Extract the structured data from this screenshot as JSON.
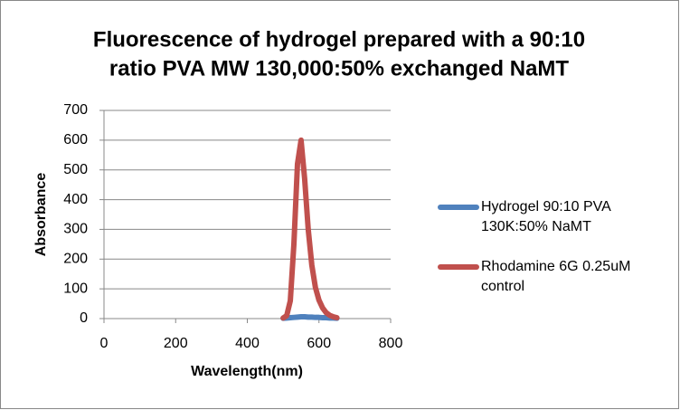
{
  "chart_data": {
    "type": "line",
    "title": [
      "Fluorescence of hydrogel prepared with a 90:10",
      "ratio PVA MW 130,000:50% exchanged NaMT"
    ],
    "x_label": "Wavelength(nm)",
    "y_label": "Absorbance",
    "x": [
      500,
      510,
      520,
      530,
      540,
      550,
      560,
      570,
      580,
      590,
      600,
      610,
      620,
      630,
      640,
      650
    ],
    "series": [
      {
        "name": "Hydrogel 90:10 PVA 130K:50% NaMT",
        "color": "#4f81bd",
        "values": [
          1,
          2,
          3,
          4,
          5,
          6,
          6,
          5,
          5,
          4,
          4,
          3,
          3,
          2,
          2,
          1
        ]
      },
      {
        "name": "Rhodamine 6G 0.25uM control",
        "color": "#c0504d",
        "values": [
          2,
          10,
          60,
          250,
          520,
          600,
          470,
          300,
          180,
          105,
          62,
          36,
          20,
          11,
          6,
          3
        ]
      }
    ],
    "xlim": [
      0,
      800
    ],
    "xticks": [
      0,
      200,
      400,
      600,
      800
    ],
    "ylim": [
      0,
      700
    ],
    "yticks": [
      0,
      100,
      200,
      300,
      400,
      500,
      600,
      700
    ],
    "grid": true,
    "legend": "right"
  }
}
